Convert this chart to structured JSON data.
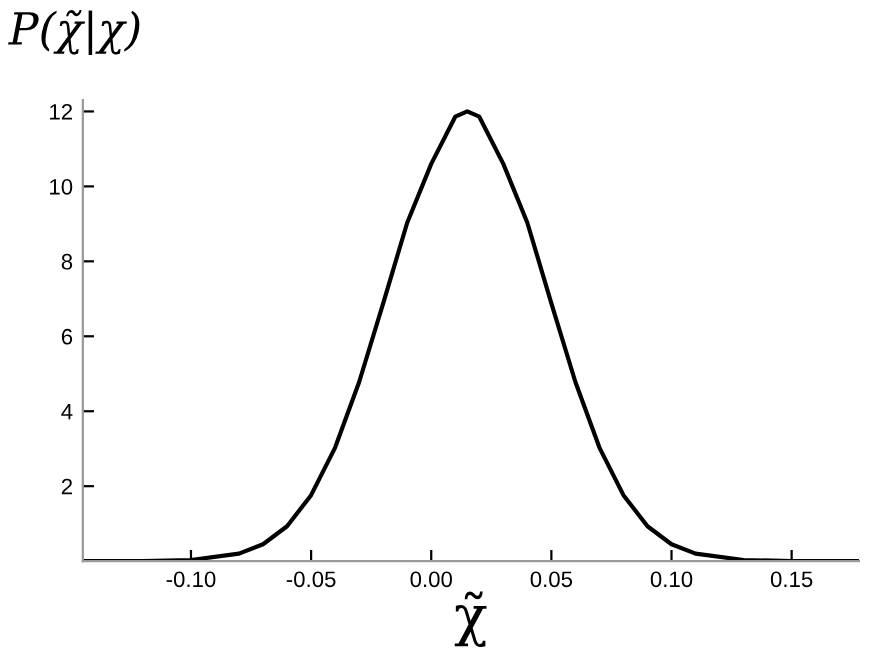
{
  "chart_data": {
    "type": "line",
    "ylabel": "P(χ̃|χ)",
    "xlabel": "χ̃",
    "x": [
      -0.145,
      -0.12,
      -0.1,
      -0.08,
      -0.07,
      -0.06,
      -0.05,
      -0.04,
      -0.03,
      -0.02,
      -0.01,
      0.0,
      0.01,
      0.015,
      0.02,
      0.03,
      0.04,
      0.05,
      0.06,
      0.07,
      0.08,
      0.09,
      0.1,
      0.11,
      0.13,
      0.15,
      0.178
    ],
    "series": [
      {
        "color": "#000000",
        "values": [
          0,
          0,
          0.03,
          0.2,
          0.45,
          0.93,
          1.76,
          3.03,
          4.78,
          6.88,
          9.03,
          10.6,
          11.86,
          12,
          11.86,
          10.6,
          9.03,
          6.88,
          4.78,
          3.03,
          1.76,
          0.93,
          0.45,
          0.2,
          0.03,
          0,
          0
        ]
      }
    ],
    "xlim": [
      -0.145,
      0.178
    ],
    "ylim": [
      0,
      12.3
    ],
    "xticks": [
      {
        "value": -0.1,
        "label": "-0.10"
      },
      {
        "value": -0.05,
        "label": "-0.05"
      },
      {
        "value": 0,
        "label": "0.00"
      },
      {
        "value": 0.05,
        "label": "0.05"
      },
      {
        "value": 0.1,
        "label": "0.10"
      },
      {
        "value": 0.15,
        "label": "0.15"
      }
    ],
    "yticks": [
      2,
      4,
      6,
      8,
      10,
      12
    ],
    "grid": false,
    "marker": "none",
    "line_style": "solid"
  }
}
